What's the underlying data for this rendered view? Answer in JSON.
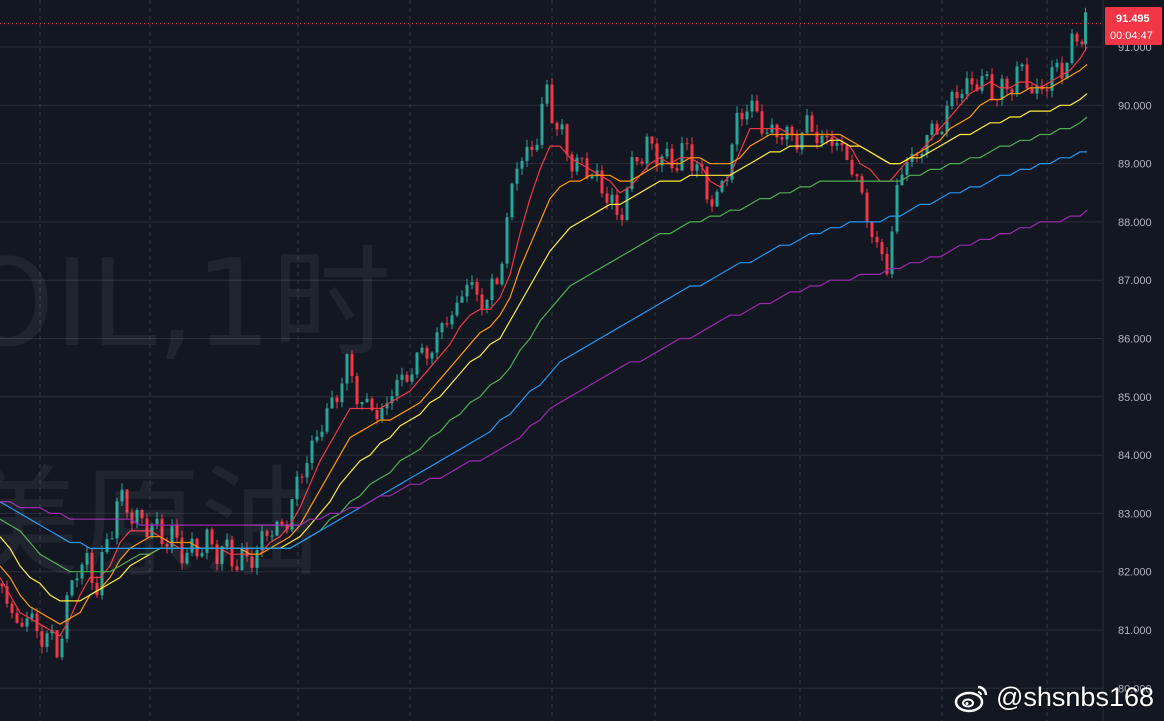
{
  "watermark": {
    "line1": "OIL,1时",
    "line2": "美原油"
  },
  "credit": {
    "handle": "@shsnbs168",
    "icon": "weibo-icon"
  },
  "price_badge": {
    "price": "91.495",
    "countdown": "00:04:47",
    "color": "#f23645"
  },
  "colors": {
    "background": "#131722",
    "grid": "#2a2e39",
    "up": "#26a69a",
    "down": "#f23645",
    "ma_colors": [
      "#f23645",
      "#ff9800",
      "#ffeb3b",
      "#4caf50",
      "#2196f3",
      "#9c27b0"
    ]
  },
  "chart_data": {
    "type": "line",
    "ylim": [
      80.0,
      91.5
    ],
    "y_ticks": [
      "81.000",
      "82.000",
      "83.000",
      "84.000",
      "85.000",
      "86.000",
      "87.000",
      "88.000",
      "89.000",
      "90.000",
      "91.000",
      "80.000"
    ],
    "y_tick_values": [
      81,
      82,
      83,
      84,
      85,
      86,
      87,
      88,
      89,
      90,
      91,
      80
    ],
    "x_index": [
      0,
      10,
      20,
      30,
      40,
      50,
      60,
      70,
      80,
      90,
      100,
      110,
      120,
      130,
      140,
      150,
      160,
      170,
      180,
      190,
      200,
      210,
      220,
      230,
      240,
      250,
      260,
      270,
      280,
      290,
      300,
      310,
      320,
      330,
      340,
      350,
      360,
      370,
      380,
      390,
      400,
      410,
      420,
      430,
      440,
      450,
      460,
      470,
      480,
      490,
      500,
      510,
      520,
      530,
      540,
      550,
      560,
      570,
      580,
      590,
      600,
      610,
      620,
      630,
      640,
      650,
      660,
      670,
      680,
      690,
      700,
      710,
      720,
      730,
      740,
      750,
      760,
      770,
      780,
      790,
      800,
      810,
      820,
      830,
      840,
      850,
      860,
      870,
      880,
      890,
      900,
      910,
      920,
      930,
      940,
      950,
      960,
      970,
      980,
      990,
      1000,
      1010,
      1020,
      1030,
      1040,
      1050,
      1060,
      1070,
      1080,
      1087
    ],
    "price": [
      81.8,
      81.5,
      81.1,
      81.2,
      81.0,
      80.9,
      80.6,
      81.5,
      82.0,
      82.2,
      81.7,
      82.5,
      83.2,
      83.1,
      82.9,
      82.8,
      82.7,
      82.6,
      82.5,
      82.3,
      82.4,
      82.5,
      82.4,
      82.3,
      82.2,
      82.2,
      82.3,
      82.8,
      82.6,
      83.0,
      83.4,
      84.0,
      84.3,
      84.7,
      85.1,
      85.5,
      85.1,
      84.8,
      84.7,
      84.9,
      85.2,
      85.4,
      85.6,
      85.8,
      86.0,
      86.3,
      86.6,
      86.9,
      86.8,
      86.6,
      87.0,
      88.0,
      89.0,
      89.2,
      89.4,
      90.3,
      89.6,
      89.2,
      89.0,
      88.9,
      88.7,
      88.5,
      88.0,
      88.6,
      89.1,
      89.3,
      89.2,
      89.0,
      89.1,
      89.2,
      89.0,
      88.5,
      88.3,
      89.0,
      89.6,
      90.1,
      89.8,
      89.5,
      89.6,
      89.4,
      89.5,
      89.6,
      89.5,
      89.4,
      89.3,
      89.2,
      88.6,
      88.2,
      87.5,
      87.2,
      88.6,
      89.0,
      89.2,
      89.4,
      89.6,
      89.9,
      90.2,
      90.4,
      90.3,
      90.5,
      90.1,
      90.3,
      90.6,
      90.4,
      90.2,
      90.4,
      90.6,
      90.8,
      91.1,
      91.5
    ],
    "series": [
      {
        "name": "MA1",
        "values": [
          81.9,
          81.6,
          81.3,
          81.2,
          81.1,
          81.0,
          80.9,
          81.2,
          81.6,
          81.9,
          81.9,
          82.1,
          82.5,
          82.7,
          82.7,
          82.7,
          82.6,
          82.5,
          82.4,
          82.4,
          82.4,
          82.4,
          82.4,
          82.3,
          82.3,
          82.3,
          82.3,
          82.5,
          82.6,
          82.8,
          83.1,
          83.5,
          83.9,
          84.2,
          84.5,
          84.8,
          84.8,
          84.8,
          84.8,
          84.9,
          85.0,
          85.1,
          85.3,
          85.5,
          85.7,
          85.9,
          86.2,
          86.4,
          86.5,
          86.5,
          86.7,
          87.1,
          87.8,
          88.4,
          88.9,
          89.3,
          89.3,
          89.1,
          89.0,
          88.9,
          88.8,
          88.7,
          88.5,
          88.6,
          88.8,
          89.0,
          89.1,
          89.0,
          89.1,
          89.1,
          89.0,
          88.7,
          88.6,
          88.8,
          89.2,
          89.6,
          89.6,
          89.6,
          89.6,
          89.5,
          89.5,
          89.5,
          89.5,
          89.5,
          89.4,
          89.3,
          89.0,
          88.9,
          88.7,
          88.7,
          88.9,
          89.1,
          89.2,
          89.4,
          89.6,
          89.8,
          90.0,
          90.2,
          90.3,
          90.4,
          90.3,
          90.3,
          90.4,
          90.4,
          90.3,
          90.4,
          90.5,
          90.6,
          90.8,
          91.0
        ]
      },
      {
        "name": "MA2",
        "values": [
          82.1,
          81.9,
          81.6,
          81.4,
          81.3,
          81.2,
          81.1,
          81.2,
          81.3,
          81.6,
          81.7,
          81.9,
          82.2,
          82.4,
          82.5,
          82.6,
          82.6,
          82.5,
          82.5,
          82.5,
          82.4,
          82.4,
          82.4,
          82.4,
          82.4,
          82.3,
          82.3,
          82.4,
          82.5,
          82.6,
          82.8,
          83.1,
          83.4,
          83.7,
          84.0,
          84.3,
          84.4,
          84.5,
          84.6,
          84.6,
          84.7,
          84.8,
          84.9,
          85.1,
          85.3,
          85.5,
          85.7,
          85.9,
          86.1,
          86.2,
          86.4,
          86.7,
          87.2,
          87.6,
          88.0,
          88.4,
          88.6,
          88.7,
          88.7,
          88.8,
          88.8,
          88.8,
          88.7,
          88.7,
          88.8,
          88.9,
          89.0,
          89.0,
          89.0,
          89.1,
          89.1,
          89.0,
          89.0,
          89.0,
          89.1,
          89.3,
          89.4,
          89.5,
          89.5,
          89.5,
          89.5,
          89.5,
          89.5,
          89.5,
          89.5,
          89.4,
          89.3,
          89.2,
          89.1,
          89.0,
          89.0,
          89.1,
          89.2,
          89.3,
          89.4,
          89.6,
          89.7,
          89.8,
          90.0,
          90.1,
          90.1,
          90.2,
          90.2,
          90.3,
          90.3,
          90.3,
          90.4,
          90.5,
          90.6,
          90.7
        ]
      },
      {
        "name": "MA3",
        "values": [
          82.6,
          82.4,
          82.1,
          81.9,
          81.8,
          81.6,
          81.5,
          81.5,
          81.5,
          81.6,
          81.7,
          81.8,
          81.9,
          82.1,
          82.2,
          82.3,
          82.4,
          82.4,
          82.4,
          82.4,
          82.4,
          82.4,
          82.4,
          82.4,
          82.4,
          82.4,
          82.4,
          82.4,
          82.4,
          82.5,
          82.6,
          82.8,
          83.0,
          83.2,
          83.5,
          83.7,
          83.9,
          84.0,
          84.2,
          84.3,
          84.5,
          84.6,
          84.7,
          84.9,
          85.0,
          85.2,
          85.4,
          85.6,
          85.7,
          85.9,
          86.0,
          86.3,
          86.6,
          86.9,
          87.2,
          87.5,
          87.7,
          87.9,
          88.0,
          88.1,
          88.2,
          88.3,
          88.3,
          88.4,
          88.5,
          88.6,
          88.7,
          88.7,
          88.7,
          88.8,
          88.8,
          88.8,
          88.8,
          88.8,
          88.9,
          89.0,
          89.1,
          89.2,
          89.2,
          89.3,
          89.3,
          89.3,
          89.3,
          89.4,
          89.4,
          89.3,
          89.3,
          89.2,
          89.1,
          89.0,
          89.0,
          89.1,
          89.1,
          89.2,
          89.3,
          89.4,
          89.5,
          89.5,
          89.6,
          89.7,
          89.7,
          89.8,
          89.8,
          89.9,
          89.9,
          89.9,
          90.0,
          90.0,
          90.1,
          90.2
        ]
      },
      {
        "name": "MA4",
        "values": [
          82.9,
          82.8,
          82.7,
          82.5,
          82.3,
          82.2,
          82.1,
          82.0,
          82.0,
          82.0,
          82.0,
          82.0,
          82.1,
          82.2,
          82.3,
          82.3,
          82.4,
          82.4,
          82.4,
          82.4,
          82.4,
          82.4,
          82.4,
          82.4,
          82.4,
          82.4,
          82.4,
          82.4,
          82.4,
          82.4,
          82.5,
          82.6,
          82.7,
          82.9,
          83.0,
          83.2,
          83.3,
          83.5,
          83.6,
          83.7,
          83.9,
          84.0,
          84.1,
          84.3,
          84.4,
          84.6,
          84.7,
          84.9,
          85.0,
          85.2,
          85.3,
          85.5,
          85.8,
          86.0,
          86.3,
          86.5,
          86.7,
          86.9,
          87.0,
          87.1,
          87.2,
          87.3,
          87.4,
          87.5,
          87.6,
          87.7,
          87.8,
          87.8,
          87.9,
          88.0,
          88.0,
          88.1,
          88.1,
          88.2,
          88.2,
          88.3,
          88.4,
          88.4,
          88.5,
          88.5,
          88.6,
          88.6,
          88.7,
          88.7,
          88.7,
          88.7,
          88.7,
          88.7,
          88.7,
          88.7,
          88.7,
          88.8,
          88.8,
          88.9,
          88.9,
          89.0,
          89.0,
          89.1,
          89.1,
          89.2,
          89.3,
          89.3,
          89.4,
          89.4,
          89.5,
          89.5,
          89.6,
          89.6,
          89.7,
          89.8
        ]
      },
      {
        "name": "MA5",
        "values": [
          83.2,
          83.1,
          83.0,
          82.9,
          82.8,
          82.7,
          82.6,
          82.5,
          82.5,
          82.4,
          82.4,
          82.4,
          82.4,
          82.4,
          82.4,
          82.4,
          82.4,
          82.4,
          82.4,
          82.4,
          82.4,
          82.4,
          82.4,
          82.4,
          82.4,
          82.4,
          82.4,
          82.4,
          82.4,
          82.4,
          82.5,
          82.6,
          82.7,
          82.8,
          82.9,
          83.0,
          83.1,
          83.2,
          83.3,
          83.4,
          83.5,
          83.6,
          83.7,
          83.8,
          83.9,
          84.0,
          84.1,
          84.2,
          84.3,
          84.4,
          84.6,
          84.7,
          84.9,
          85.1,
          85.2,
          85.4,
          85.6,
          85.7,
          85.8,
          85.9,
          86.0,
          86.1,
          86.2,
          86.3,
          86.4,
          86.5,
          86.6,
          86.7,
          86.8,
          86.9,
          86.9,
          87.0,
          87.1,
          87.2,
          87.3,
          87.3,
          87.4,
          87.5,
          87.6,
          87.6,
          87.7,
          87.8,
          87.8,
          87.9,
          87.9,
          88.0,
          88.0,
          88.0,
          88.0,
          88.1,
          88.1,
          88.2,
          88.3,
          88.3,
          88.4,
          88.5,
          88.5,
          88.6,
          88.6,
          88.7,
          88.8,
          88.8,
          88.9,
          88.9,
          89.0,
          89.0,
          89.1,
          89.1,
          89.2,
          89.2
        ]
      },
      {
        "name": "MA6",
        "values": [
          83.2,
          83.2,
          83.1,
          83.1,
          83.1,
          83.0,
          83.0,
          82.9,
          82.9,
          82.9,
          82.9,
          82.9,
          82.9,
          82.9,
          82.8,
          82.8,
          82.8,
          82.8,
          82.8,
          82.8,
          82.8,
          82.8,
          82.8,
          82.8,
          82.8,
          82.8,
          82.8,
          82.8,
          82.8,
          82.8,
          82.8,
          82.9,
          82.9,
          83.0,
          83.0,
          83.1,
          83.1,
          83.2,
          83.3,
          83.3,
          83.4,
          83.5,
          83.5,
          83.6,
          83.6,
          83.7,
          83.8,
          83.9,
          83.9,
          84.0,
          84.1,
          84.2,
          84.3,
          84.5,
          84.6,
          84.8,
          84.9,
          85.0,
          85.1,
          85.2,
          85.3,
          85.4,
          85.5,
          85.6,
          85.6,
          85.7,
          85.8,
          85.9,
          86.0,
          86.0,
          86.1,
          86.2,
          86.3,
          86.4,
          86.4,
          86.5,
          86.6,
          86.6,
          86.7,
          86.8,
          86.8,
          86.9,
          86.9,
          87.0,
          87.0,
          87.0,
          87.1,
          87.1,
          87.1,
          87.2,
          87.2,
          87.3,
          87.3,
          87.4,
          87.4,
          87.5,
          87.6,
          87.6,
          87.7,
          87.7,
          87.8,
          87.8,
          87.9,
          87.9,
          88.0,
          88.0,
          88.0,
          88.1,
          88.1,
          88.2
        ]
      }
    ]
  }
}
